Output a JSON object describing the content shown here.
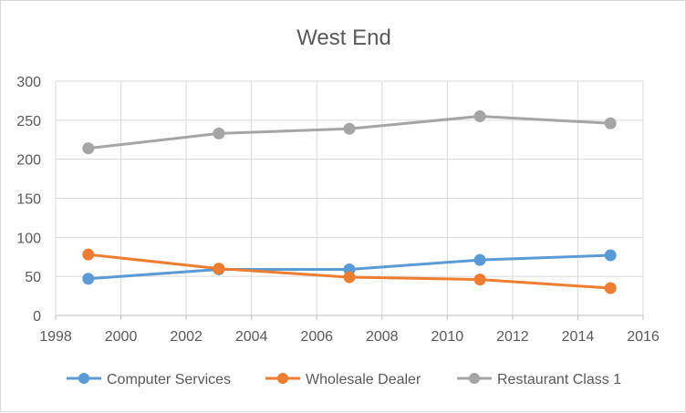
{
  "chart_data": {
    "type": "line",
    "title": "West End",
    "xlabel": "",
    "ylabel": "",
    "xlim": [
      1998,
      2016
    ],
    "ylim": [
      0,
      300
    ],
    "xticks": [
      1998,
      2000,
      2002,
      2004,
      2006,
      2008,
      2010,
      2012,
      2014,
      2016
    ],
    "yticks": [
      0,
      50,
      100,
      150,
      200,
      250,
      300
    ],
    "grid": true,
    "legend_position": "bottom",
    "x": [
      1999,
      2003,
      2007,
      2011,
      2015
    ],
    "series": [
      {
        "name": "Computer Services",
        "color": "#5b9bd5",
        "values": [
          47,
          59,
          59,
          71,
          77
        ]
      },
      {
        "name": "Wholesale Dealer",
        "color": "#ed7d31",
        "values": [
          78,
          60,
          49,
          46,
          35
        ]
      },
      {
        "name": "Restaurant Class 1",
        "color": "#a5a5a5",
        "values": [
          214,
          233,
          239,
          255,
          246
        ]
      }
    ]
  }
}
